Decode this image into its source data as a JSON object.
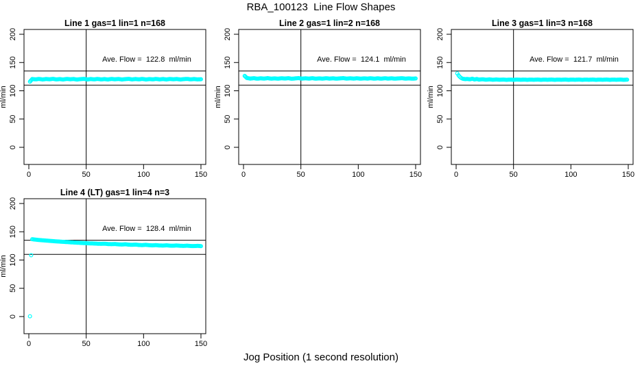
{
  "page_title": "RBA_100123  Line Flow Shapes",
  "x_axis_label": "Jog Position (1 second resolution)",
  "colors": {
    "points": "#00FFFF",
    "axis": "#000000",
    "background": "#FFFFFF"
  },
  "chart_data": [
    {
      "type": "scatter",
      "title": "Line 1 gas=1 lin=1 n=168",
      "ave_flow": 122.8,
      "ave_flow_text": "Ave. Flow =  122.8  ml/min",
      "ylabel": "ml/min",
      "xticks": [
        0,
        50,
        100,
        150
      ],
      "yticks": [
        0,
        50,
        100,
        150,
        200
      ],
      "xlim": [
        -4,
        154
      ],
      "ylim": [
        -30,
        209
      ],
      "vline_x": 50,
      "hlines_y": [
        110,
        135
      ],
      "points": [
        [
          1,
          116.3
        ],
        [
          3,
          120.8
        ],
        [
          6,
          120.2
        ],
        [
          9,
          121.0
        ],
        [
          12,
          120.0
        ],
        [
          15,
          120.8
        ],
        [
          18,
          120.3
        ],
        [
          21,
          121.1
        ],
        [
          24,
          120.1
        ],
        [
          27,
          120.7
        ],
        [
          30,
          120.0
        ],
        [
          33,
          121.0
        ],
        [
          36,
          120.4
        ],
        [
          39,
          120.9
        ],
        [
          42,
          119.9
        ],
        [
          45,
          120.6
        ],
        [
          48,
          121.1
        ],
        [
          51,
          120.0
        ],
        [
          54,
          120.8
        ],
        [
          57,
          120.2
        ],
        [
          60,
          121.0
        ],
        [
          63,
          120.1
        ],
        [
          66,
          120.7
        ],
        [
          69,
          120.0
        ],
        [
          72,
          121.0
        ],
        [
          75,
          120.3
        ],
        [
          78,
          120.9
        ],
        [
          81,
          120.0
        ],
        [
          84,
          120.6
        ],
        [
          87,
          121.1
        ],
        [
          90,
          120.1
        ],
        [
          93,
          120.8
        ],
        [
          96,
          120.2
        ],
        [
          99,
          121.0
        ],
        [
          102,
          120.0
        ],
        [
          105,
          120.7
        ],
        [
          108,
          120.2
        ],
        [
          111,
          121.0
        ],
        [
          114,
          120.1
        ],
        [
          117,
          120.8
        ],
        [
          120,
          120.0
        ],
        [
          123,
          120.9
        ],
        [
          126,
          120.3
        ],
        [
          129,
          120.8
        ],
        [
          132,
          120.0
        ],
        [
          135,
          120.6
        ],
        [
          138,
          121.0
        ],
        [
          141,
          120.2
        ],
        [
          144,
          120.8
        ],
        [
          147,
          120.1
        ],
        [
          150,
          120.5
        ]
      ],
      "outliers": []
    },
    {
      "type": "scatter",
      "title": "Line 2 gas=1 lin=2 n=168",
      "ave_flow": 124.1,
      "ave_flow_text": "Ave. Flow =  124.1  ml/min",
      "ylabel": "ml/min",
      "xticks": [
        0,
        50,
        100,
        150
      ],
      "yticks": [
        0,
        50,
        100,
        150,
        200
      ],
      "xlim": [
        -4,
        154
      ],
      "ylim": [
        -30,
        209
      ],
      "vline_x": 50,
      "hlines_y": [
        110,
        135
      ],
      "points": [
        [
          1,
          126.3
        ],
        [
          3,
          122.5
        ],
        [
          6,
          121.6
        ],
        [
          9,
          122.3
        ],
        [
          12,
          121.4
        ],
        [
          15,
          122.1
        ],
        [
          18,
          121.6
        ],
        [
          21,
          122.4
        ],
        [
          24,
          121.5
        ],
        [
          27,
          122.0
        ],
        [
          30,
          121.4
        ],
        [
          33,
          122.2
        ],
        [
          36,
          121.7
        ],
        [
          39,
          122.3
        ],
        [
          42,
          121.3
        ],
        [
          45,
          121.9
        ],
        [
          48,
          122.4
        ],
        [
          51,
          121.5
        ],
        [
          54,
          122.1
        ],
        [
          57,
          121.5
        ],
        [
          60,
          122.3
        ],
        [
          63,
          121.4
        ],
        [
          66,
          122.0
        ],
        [
          69,
          121.5
        ],
        [
          72,
          122.2
        ],
        [
          75,
          121.6
        ],
        [
          78,
          122.1
        ],
        [
          81,
          121.4
        ],
        [
          84,
          121.9
        ],
        [
          87,
          122.4
        ],
        [
          90,
          121.5
        ],
        [
          93,
          122.1
        ],
        [
          96,
          121.5
        ],
        [
          99,
          122.2
        ],
        [
          102,
          121.4
        ],
        [
          105,
          122.0
        ],
        [
          108,
          121.6
        ],
        [
          111,
          122.2
        ],
        [
          114,
          121.4
        ],
        [
          117,
          122.1
        ],
        [
          120,
          121.4
        ],
        [
          123,
          122.2
        ],
        [
          126,
          121.6
        ],
        [
          129,
          122.1
        ],
        [
          132,
          121.4
        ],
        [
          135,
          121.9
        ],
        [
          138,
          122.3
        ],
        [
          141,
          121.5
        ],
        [
          144,
          122.0
        ],
        [
          147,
          121.4
        ],
        [
          150,
          121.8
        ]
      ],
      "outliers": []
    },
    {
      "type": "scatter",
      "title": "Line 3 gas=1 lin=3 n=168",
      "ave_flow": 121.7,
      "ave_flow_text": "Ave. Flow =  121.7  ml/min",
      "ylabel": "ml/min",
      "xticks": [
        0,
        50,
        100,
        150
      ],
      "yticks": [
        0,
        50,
        100,
        150,
        200
      ],
      "xlim": [
        -4,
        154
      ],
      "ylim": [
        -30,
        209
      ],
      "vline_x": 50,
      "hlines_y": [
        110,
        135
      ],
      "points": [
        [
          1,
          130.8
        ],
        [
          2,
          127.5
        ],
        [
          3,
          125.2
        ],
        [
          4,
          123.4
        ],
        [
          5,
          122.0
        ],
        [
          6,
          121.2
        ],
        [
          8,
          120.6
        ],
        [
          10,
          120.9
        ],
        [
          12,
          120.2
        ],
        [
          14,
          121.3
        ],
        [
          16,
          120.0
        ],
        [
          18,
          120.8
        ],
        [
          20,
          119.8
        ],
        [
          23,
          120.4
        ],
        [
          26,
          119.6
        ],
        [
          29,
          120.2
        ],
        [
          32,
          119.5
        ],
        [
          35,
          120.0
        ],
        [
          38,
          119.5
        ],
        [
          41,
          119.9
        ],
        [
          44,
          119.4
        ],
        [
          47,
          119.8
        ],
        [
          50,
          119.4
        ],
        [
          53,
          119.9
        ],
        [
          56,
          119.5
        ],
        [
          59,
          119.8
        ],
        [
          62,
          119.4
        ],
        [
          65,
          119.8
        ],
        [
          68,
          119.5
        ],
        [
          71,
          119.9
        ],
        [
          74,
          119.4
        ],
        [
          77,
          119.8
        ],
        [
          80,
          119.5
        ],
        [
          83,
          119.9
        ],
        [
          86,
          119.4
        ],
        [
          89,
          119.8
        ],
        [
          92,
          119.5
        ],
        [
          95,
          119.9
        ],
        [
          98,
          119.4
        ],
        [
          101,
          119.8
        ],
        [
          104,
          119.5
        ],
        [
          107,
          119.9
        ],
        [
          110,
          119.4
        ],
        [
          113,
          119.8
        ],
        [
          116,
          119.5
        ],
        [
          119,
          119.9
        ],
        [
          122,
          119.4
        ],
        [
          125,
          119.8
        ],
        [
          128,
          119.5
        ],
        [
          131,
          119.9
        ],
        [
          134,
          119.4
        ],
        [
          137,
          119.8
        ],
        [
          140,
          119.5
        ],
        [
          143,
          119.9
        ],
        [
          146,
          119.4
        ],
        [
          149,
          119.7
        ]
      ],
      "outliers": []
    },
    {
      "type": "scatter",
      "title": "Line 4 (LT) gas=1 lin=4 n=3",
      "ave_flow": 128.4,
      "ave_flow_text": "Ave. Flow =  128.4  ml/min",
      "ylabel": "ml/min",
      "xticks": [
        0,
        50,
        100,
        150
      ],
      "yticks": [
        0,
        50,
        100,
        150,
        200
      ],
      "xlim": [
        -4,
        154
      ],
      "ylim": [
        -30,
        209
      ],
      "vline_x": 50,
      "hlines_y": [
        110,
        135
      ],
      "points": [
        [
          3,
          136.8
        ],
        [
          6,
          136.0
        ],
        [
          9,
          135.4
        ],
        [
          12,
          134.9
        ],
        [
          15,
          134.4
        ],
        [
          18,
          133.9
        ],
        [
          21,
          133.5
        ],
        [
          24,
          133.0
        ],
        [
          27,
          132.6
        ],
        [
          30,
          132.2
        ],
        [
          33,
          131.8
        ],
        [
          36,
          131.4
        ],
        [
          39,
          131.0
        ],
        [
          42,
          130.7
        ],
        [
          45,
          130.3
        ],
        [
          48,
          130.0
        ],
        [
          51,
          129.7
        ],
        [
          54,
          129.4
        ],
        [
          57,
          129.2
        ],
        [
          60,
          128.9
        ],
        [
          63,
          128.6
        ],
        [
          66,
          128.9
        ],
        [
          69,
          128.3
        ],
        [
          72,
          128.0
        ],
        [
          75,
          128.4
        ],
        [
          78,
          127.7
        ],
        [
          81,
          127.4
        ],
        [
          84,
          127.9
        ],
        [
          87,
          127.2
        ],
        [
          90,
          126.9
        ],
        [
          93,
          127.3
        ],
        [
          96,
          126.6
        ],
        [
          99,
          126.4
        ],
        [
          102,
          126.9
        ],
        [
          105,
          126.2
        ],
        [
          108,
          125.9
        ],
        [
          111,
          126.4
        ],
        [
          114,
          125.7
        ],
        [
          117,
          125.6
        ],
        [
          120,
          126.1
        ],
        [
          123,
          125.4
        ],
        [
          126,
          125.3
        ],
        [
          129,
          125.8
        ],
        [
          132,
          125.1
        ],
        [
          135,
          125.0
        ],
        [
          138,
          125.4
        ],
        [
          141,
          124.8
        ],
        [
          144,
          124.7
        ],
        [
          147,
          125.1
        ],
        [
          150,
          124.6
        ]
      ],
      "outliers": [
        [
          1,
          0.5
        ],
        [
          2,
          108.5
        ]
      ]
    }
  ]
}
